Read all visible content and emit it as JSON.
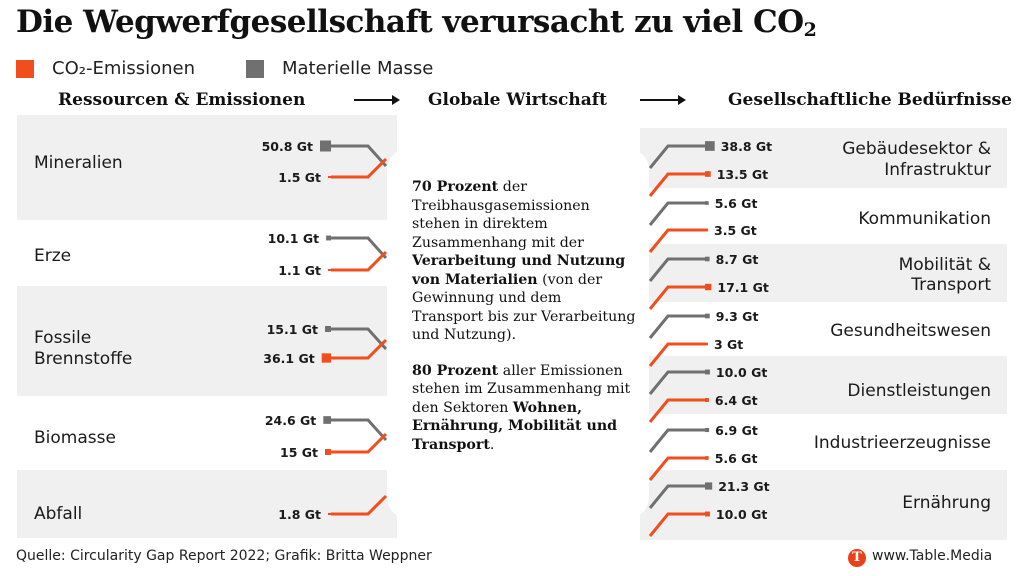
{
  "title_main": "Die Wegwerfgesellschaft verursacht zu viel CO",
  "title_sub": "2",
  "legend": [
    {
      "label": "CO₂-Emissionen",
      "color": "#f04e1c"
    },
    {
      "label": "Materielle Masse",
      "color": "#707070"
    }
  ],
  "headers": {
    "left": "Ressourcen & Emissionen",
    "center": "Globale Wirtschaft",
    "right": "Gesellschaftliche Bedürfnisse"
  },
  "center_text": {
    "p1_bold": "70 Prozent",
    "p1_a": " der Treibhausgasemissionen stehen in direktem Zusammenhang mit der ",
    "p1_bold2": "Verarbeitung und Nutzung von Materialien",
    "p1_b": " (von der Gewinnung und dem Transport bis zur Verarbeitung und Nutzung).",
    "p2_bold": "80 Prozent",
    "p2_a": " aller Emissionen stehen im Zusammenhang mit den Sektoren ",
    "p2_bold2": "Wohnen, Ernährung, Mobilität und Transport",
    "p2_b": "."
  },
  "footer": {
    "source": "Quelle: Circularity Gap Report 2022; Grafik: Britta Weppner",
    "logo_letter": "T",
    "website": "www.Table.Media"
  },
  "colors": {
    "emission": "#f04e1c",
    "mass": "#707070",
    "band": "#f0f0f0"
  },
  "chart_data": {
    "type": "sankey",
    "unit": "Gt",
    "series_names": [
      "CO₂-Emissionen",
      "Materielle Masse"
    ],
    "sources": [
      {
        "name": "Mineralien",
        "mass": 50.8,
        "mass_label": "50.8 Gt",
        "emission": 1.5,
        "emission_label": "1.5 Gt"
      },
      {
        "name": "Erze",
        "mass": 10.1,
        "mass_label": "10.1 Gt",
        "emission": 1.1,
        "emission_label": "1.1 Gt"
      },
      {
        "name": "Fossile Brennstoffe",
        "mass": 15.1,
        "mass_label": "15.1 Gt",
        "emission": 36.1,
        "emission_label": "36.1 Gt"
      },
      {
        "name": "Biomasse",
        "mass": 24.6,
        "mass_label": "24.6 Gt",
        "emission": 15,
        "emission_label": "15 Gt"
      },
      {
        "name": "Abfall",
        "mass": null,
        "mass_label": "",
        "emission": 1.8,
        "emission_label": "1.8 Gt"
      }
    ],
    "needs": [
      {
        "name": "Gebäudesektor & Infrastruktur",
        "mass": 38.8,
        "mass_label": "38.8 Gt",
        "emission": 13.5,
        "emission_label": "13.5 Gt"
      },
      {
        "name": "Kommunikation",
        "mass": 5.6,
        "mass_label": "5.6 Gt",
        "emission": 3.5,
        "emission_label": "3.5 Gt"
      },
      {
        "name": "Mobilität & Transport",
        "mass": 8.7,
        "mass_label": "8.7 Gt",
        "emission": 17.1,
        "emission_label": "17.1 Gt"
      },
      {
        "name": "Gesundheitswesen",
        "mass": 9.3,
        "mass_label": "9.3 Gt",
        "emission": 3,
        "emission_label": "3 Gt"
      },
      {
        "name": "Dienstleistungen",
        "mass": 10.0,
        "mass_label": "10.0 Gt",
        "emission": 6.4,
        "emission_label": "6.4 Gt"
      },
      {
        "name": "Industrieerzeugnisse",
        "mass": 6.9,
        "mass_label": "6.9 Gt",
        "emission": 5.6,
        "emission_label": "5.6 Gt"
      },
      {
        "name": "Ernährung",
        "mass": 21.3,
        "mass_label": "21.3 Gt",
        "emission": 10.0,
        "emission_label": "10.0 Gt"
      }
    ]
  }
}
